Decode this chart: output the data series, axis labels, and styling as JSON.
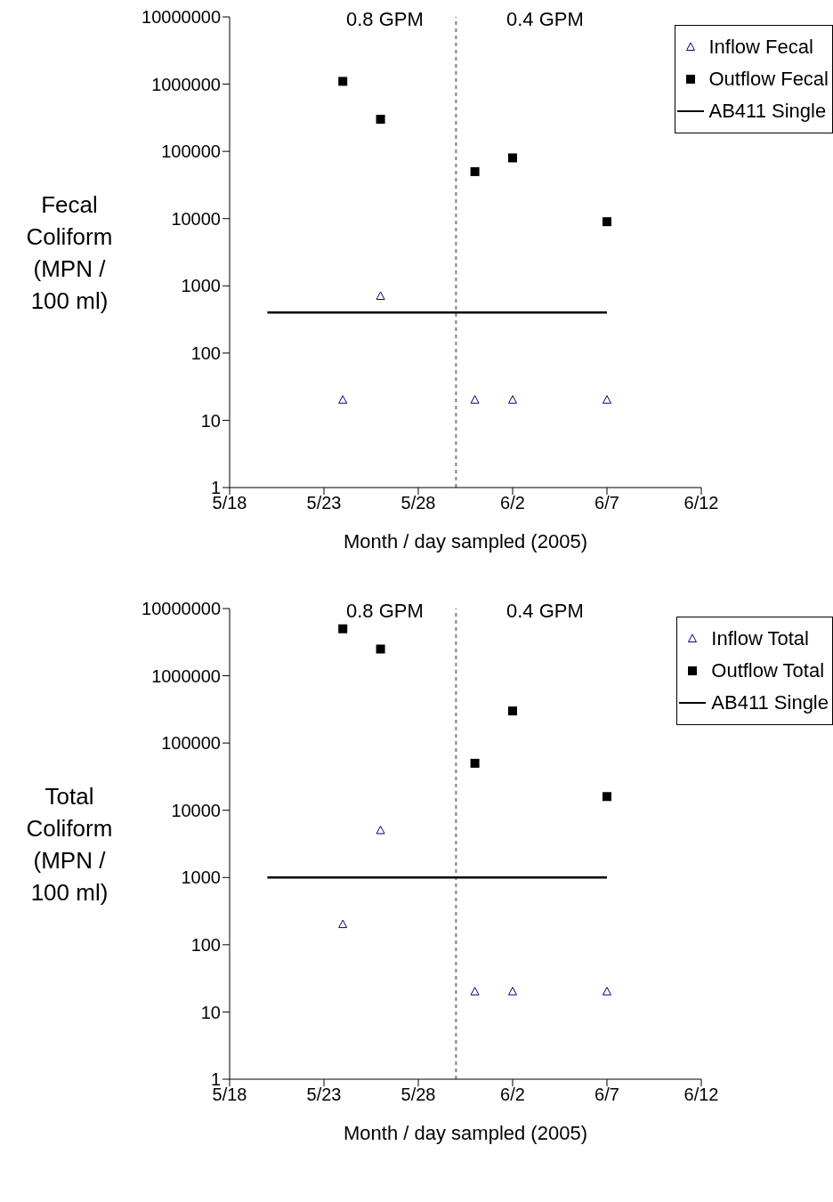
{
  "chart_data": [
    {
      "type": "scatter",
      "xlabel": "Month / day sampled (2005)",
      "ylabel": "Fecal Coliform (MPN / 100 ml)",
      "log": "y",
      "legend": "top right",
      "annotations": [
        "0.8 GPM",
        "0.4 GPM"
      ],
      "x": [
        "2005-05-24",
        "2005-05-26",
        "2005-05-31",
        "2005-06-02",
        "2005-06-07"
      ],
      "xlim": [
        "2005-05-18",
        "2005-06-12"
      ],
      "xticks": [
        {
          "value": "2005-05-18",
          "label": "5/18"
        },
        {
          "value": "2005-05-23",
          "label": "5/23"
        },
        {
          "value": "2005-05-28",
          "label": "5/28"
        },
        {
          "value": "2005-06-02",
          "label": "6/2"
        },
        {
          "value": "2005-06-07",
          "label": "6/7"
        },
        {
          "value": "2005-06-12",
          "label": "6/12"
        }
      ],
      "ylim": [
        1,
        10000000
      ],
      "yticks": [
        1,
        10,
        100,
        1000,
        10000,
        100000,
        1000000,
        10000000
      ],
      "ref_lines": [
        {
          "axis": "x",
          "value": "2005-05-30",
          "color": "#808080",
          "line_style": "dashed"
        }
      ],
      "series": [
        {
          "name": "Inflow Fecal",
          "color": "#000080",
          "marker": "triangle",
          "values": [
            20,
            700,
            20,
            20,
            20
          ]
        },
        {
          "name": "Outflow Fecal",
          "color": "#000000",
          "marker": "square",
          "values": [
            1100000,
            300000,
            50000,
            80000,
            9000
          ]
        },
        {
          "name": "AB411 Single",
          "type": "line",
          "color": "#000000",
          "marker": "none",
          "line_style": "solid",
          "x": [
            "2005-05-20",
            "2005-06-07"
          ],
          "values": [
            400,
            400
          ]
        }
      ]
    },
    {
      "type": "scatter",
      "xlabel": "Month / day sampled (2005)",
      "ylabel": "Total Coliform (MPN / 100 ml)",
      "log": "y",
      "legend": "top right",
      "annotations": [
        "0.8 GPM",
        "0.4 GPM"
      ],
      "x": [
        "2005-05-24",
        "2005-05-26",
        "2005-05-31",
        "2005-06-02",
        "2005-06-07"
      ],
      "xlim": [
        "2005-05-18",
        "2005-06-12"
      ],
      "xticks": [
        {
          "value": "2005-05-18",
          "label": "5/18"
        },
        {
          "value": "2005-05-23",
          "label": "5/23"
        },
        {
          "value": "2005-05-28",
          "label": "5/28"
        },
        {
          "value": "2005-06-02",
          "label": "6/2"
        },
        {
          "value": "2005-06-07",
          "label": "6/7"
        },
        {
          "value": "2005-06-12",
          "label": "6/12"
        }
      ],
      "ylim": [
        1,
        10000000
      ],
      "yticks": [
        1,
        10,
        100,
        1000,
        10000,
        100000,
        1000000,
        10000000
      ],
      "ref_lines": [
        {
          "axis": "x",
          "value": "2005-05-30",
          "color": "#808080",
          "line_style": "dashed"
        }
      ],
      "series": [
        {
          "name": "Inflow Total",
          "color": "#000080",
          "marker": "triangle",
          "values": [
            200,
            5000,
            20,
            20,
            20
          ]
        },
        {
          "name": "Outflow Total",
          "color": "#000000",
          "marker": "square",
          "values": [
            5000000,
            2500000,
            50000,
            300000,
            16000
          ]
        },
        {
          "name": "AB411 Single",
          "type": "line",
          "color": "#000000",
          "marker": "none",
          "line_style": "solid",
          "x": [
            "2005-05-20",
            "2005-06-07"
          ],
          "values": [
            1000,
            1000
          ]
        }
      ]
    }
  ]
}
